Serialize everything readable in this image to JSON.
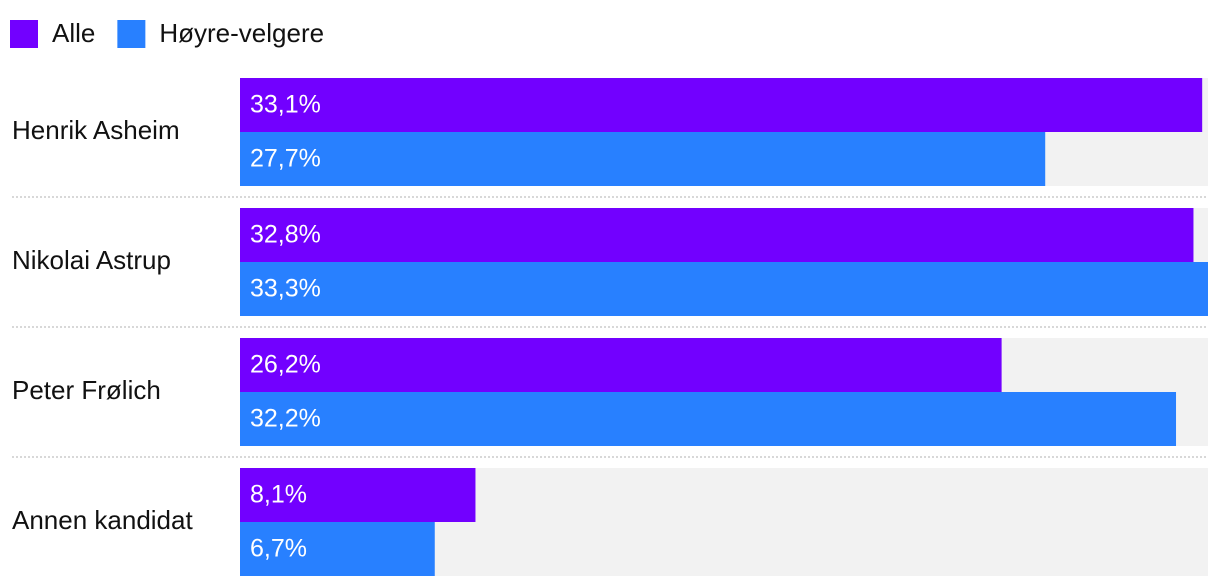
{
  "chart_data": {
    "type": "bar",
    "orientation": "horizontal",
    "categories": [
      "Henrik Asheim",
      "Nikolai Astrup",
      "Peter Frølich",
      "Annen kandidat"
    ],
    "series": [
      {
        "name": "Alle",
        "color": "#7200ff",
        "values": [
          33.1,
          32.8,
          26.2,
          8.1
        ],
        "value_labels": [
          "33,1%",
          "32,8%",
          "26,2%",
          "8,1%"
        ]
      },
      {
        "name": "Høyre-velgere",
        "color": "#2880ff",
        "values": [
          27.7,
          33.3,
          32.2,
          6.7
        ],
        "value_labels": [
          "27,7%",
          "33,3%",
          "32,2%",
          "6,7%"
        ]
      }
    ],
    "track_color": "#f2f2f2"
  }
}
